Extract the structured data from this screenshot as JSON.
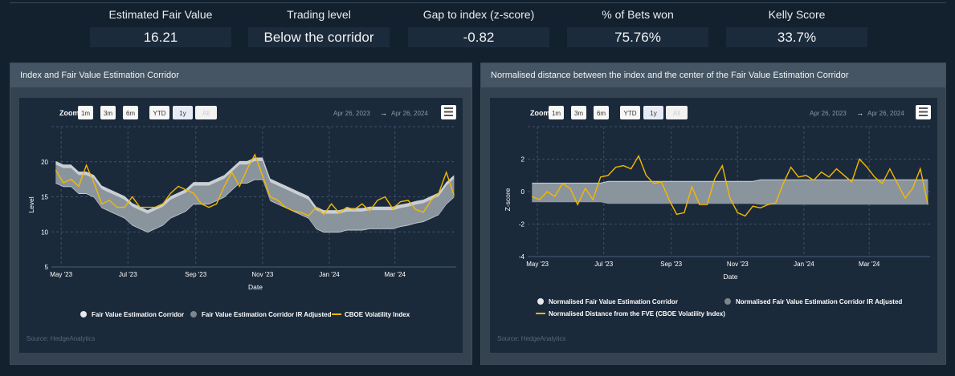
{
  "stats": [
    {
      "label": "Estimated Fair Value",
      "value": "16.21"
    },
    {
      "label": "Trading level",
      "value": "Below the corridor"
    },
    {
      "label": "Gap to index (z-score)",
      "value": "-0.82"
    },
    {
      "label": "% of Bets won",
      "value": "75.76%"
    },
    {
      "label": "Kelly Score",
      "value": "33.7%"
    }
  ],
  "colors": {
    "index_line": "#f5b800",
    "corridor": "#d4d8dc",
    "corridor_ir": "#8a949d",
    "background": "#13202d",
    "chart_bg": "#1b2a3b",
    "panel_header": "#465563"
  },
  "zoom": {
    "label": "Zoom",
    "buttons": [
      "1m",
      "3m",
      "6m",
      "YTD",
      "1y",
      "All"
    ],
    "selected": "1y",
    "disabled": "All"
  },
  "range": {
    "from": "Apr 26, 2023",
    "arrow": "→",
    "to": "Apr 26, 2024"
  },
  "menu_icon": "hamburger-icon",
  "chart_data": [
    {
      "type": "area",
      "title": "Index and Fair Value Estimation Corridor",
      "xlabel": "Date",
      "ylabel": "Level",
      "ylim": [
        5,
        25
      ],
      "yticks": [
        5,
        10,
        15,
        20
      ],
      "xticks": [
        "May '23",
        "Jul '23",
        "Sep '23",
        "Nov '23",
        "Jan '24",
        "Mar '24"
      ],
      "xtick_dates": [
        "2023-05-01",
        "2023-07-01",
        "2023-09-01",
        "2023-11-01",
        "2024-01-01",
        "2024-03-01"
      ],
      "xlim": [
        "2023-04-25",
        "2024-04-26"
      ],
      "grid": true,
      "legend": "bottom",
      "source": "Source: HedgeAnalytics",
      "x": [
        "2023-04-26",
        "2023-05-03",
        "2023-05-10",
        "2023-05-17",
        "2023-05-24",
        "2023-05-31",
        "2023-06-07",
        "2023-06-14",
        "2023-06-21",
        "2023-06-28",
        "2023-07-05",
        "2023-07-12",
        "2023-07-19",
        "2023-07-26",
        "2023-08-02",
        "2023-08-09",
        "2023-08-16",
        "2023-08-23",
        "2023-08-30",
        "2023-09-06",
        "2023-09-13",
        "2023-09-20",
        "2023-09-27",
        "2023-10-04",
        "2023-10-11",
        "2023-10-18",
        "2023-10-25",
        "2023-11-01",
        "2023-11-08",
        "2023-11-15",
        "2023-11-22",
        "2023-11-29",
        "2023-12-06",
        "2023-12-13",
        "2023-12-20",
        "2023-12-27",
        "2024-01-03",
        "2024-01-10",
        "2024-01-17",
        "2024-01-24",
        "2024-01-31",
        "2024-02-07",
        "2024-02-14",
        "2024-02-21",
        "2024-02-28",
        "2024-03-06",
        "2024-03-13",
        "2024-03-20",
        "2024-03-27",
        "2024-04-03",
        "2024-04-10",
        "2024-04-17",
        "2024-04-24"
      ],
      "series": [
        {
          "name": "Fair Value Estimation Corridor",
          "kind": "band",
          "low": [
            16.9,
            16.4,
            16.4,
            15.4,
            15.4,
            14.9,
            13.4,
            12.9,
            12.4,
            11.9,
            10.9,
            10.4,
            9.9,
            10.4,
            10.9,
            11.9,
            12.4,
            12.9,
            13.9,
            13.9,
            13.9,
            14.4,
            14.9,
            15.9,
            16.9,
            16.9,
            17.4,
            17.4,
            14.4,
            13.9,
            13.4,
            12.9,
            12.4,
            11.9,
            10.4,
            9.9,
            9.9,
            9.9,
            10.2,
            10.2,
            10.2,
            10.4,
            10.4,
            10.4,
            10.4,
            10.7,
            10.9,
            11.2,
            11.4,
            11.9,
            12.4,
            13.9,
            14.9
          ],
          "high": [
            20.1,
            19.6,
            19.6,
            18.6,
            18.6,
            18.1,
            16.6,
            16.1,
            15.6,
            15.1,
            14.1,
            13.6,
            13.1,
            13.6,
            14.1,
            15.1,
            15.6,
            16.1,
            17.1,
            17.1,
            17.1,
            17.6,
            18.1,
            19.1,
            20.1,
            20.1,
            20.6,
            20.6,
            17.6,
            17.1,
            16.6,
            16.1,
            15.6,
            15.1,
            13.6,
            13.1,
            13.1,
            13.1,
            13.4,
            13.4,
            13.4,
            13.6,
            13.6,
            13.6,
            13.6,
            13.9,
            14.1,
            14.4,
            14.6,
            15.1,
            15.6,
            17.1,
            18.1
          ]
        },
        {
          "name": "Fair Value Estimation Corridor IR Adjusted",
          "kind": "band",
          "low": [
            17,
            16.5,
            16.5,
            15.5,
            15.5,
            15,
            13.5,
            13,
            12.5,
            12,
            11,
            10.5,
            10,
            10.5,
            11,
            12,
            12.5,
            13,
            14,
            14,
            14,
            14.5,
            15,
            16,
            17,
            17,
            17.5,
            17.5,
            14.5,
            14,
            13.5,
            13,
            12.5,
            12,
            10.5,
            10,
            10,
            10,
            10.3,
            10.3,
            10.3,
            10.5,
            10.5,
            10.5,
            10.5,
            10.8,
            11,
            11.3,
            11.5,
            12,
            12.5,
            14,
            15
          ],
          "high": [
            19.6,
            19.1,
            19.1,
            18.1,
            18.1,
            17.6,
            16.1,
            15.6,
            15.1,
            14.6,
            13.6,
            13.1,
            12.6,
            13.1,
            13.6,
            14.6,
            15.1,
            15.6,
            16.6,
            16.6,
            16.6,
            17.1,
            17.6,
            18.6,
            19.6,
            19.6,
            20.1,
            20.1,
            17.1,
            16.6,
            16.1,
            15.6,
            15.1,
            14.6,
            13.1,
            12.6,
            12.6,
            12.6,
            12.9,
            12.9,
            12.9,
            13.1,
            13.1,
            13.1,
            13.1,
            13.4,
            13.6,
            13.9,
            14.1,
            14.6,
            15.1,
            16.6,
            17.6
          ]
        },
        {
          "name": "CBOE Volatility Index",
          "kind": "line",
          "values": [
            18.8,
            17,
            17.5,
            16.5,
            19.5,
            17,
            14,
            14.5,
            13.5,
            13.5,
            15,
            13.5,
            13.5,
            13.5,
            14,
            15.5,
            16.5,
            16,
            15.5,
            14,
            13.5,
            14,
            16.5,
            18.5,
            16.5,
            19,
            21,
            18,
            15,
            14.5,
            13.5,
            13,
            12.8,
            12.3,
            13.5,
            12.5,
            14,
            12.7,
            13.5,
            13.2,
            14,
            13,
            14.5,
            15,
            13.3,
            14.3,
            14.5,
            13.2,
            12.8,
            14.5,
            15.5,
            18.5,
            15.2
          ]
        }
      ]
    },
    {
      "type": "area",
      "title": "Normalised distance between the index and the center of the Fair Value Estimation Corridor",
      "xlabel": "Date",
      "ylabel": "Z-score",
      "ylim": [
        -4,
        4
      ],
      "yticks": [
        -4,
        -2,
        0,
        2
      ],
      "xticks": [
        "May '23",
        "Jul '23",
        "Sep '23",
        "Nov '23",
        "Jan '24",
        "Mar '24"
      ],
      "xtick_dates": [
        "2023-05-01",
        "2023-07-01",
        "2023-09-01",
        "2023-11-01",
        "2024-01-01",
        "2024-03-01"
      ],
      "xlim": [
        "2023-04-25",
        "2024-04-26"
      ],
      "grid": true,
      "legend": "bottom",
      "source": "Source: HedgeAnalytics",
      "series": [
        {
          "name": "Normalised Fair Value Estimation Corridor",
          "kind": "band",
          "low": [
            -0.55,
            -0.55,
            -0.55,
            -0.55,
            -0.55,
            -0.55,
            -0.55,
            -0.55,
            -0.55,
            -0.55,
            -0.65,
            -0.65,
            -0.65,
            -0.65,
            -0.65,
            -0.65,
            -0.65,
            -0.65,
            -0.65,
            -0.65,
            -0.65,
            -0.65,
            -0.65,
            -0.65,
            -0.65,
            -0.65,
            -0.65,
            -0.65,
            -0.65,
            -0.65,
            -0.75,
            -0.75,
            -0.75,
            -0.75,
            -0.75,
            -0.75,
            -0.75,
            -0.75,
            -0.75,
            -0.75,
            -0.75,
            -0.75,
            -0.75,
            -0.75,
            -0.75,
            -0.75,
            -0.75,
            -0.75,
            -0.75,
            -0.75,
            -0.75,
            -0.75,
            -0.75
          ],
          "high": [
            0.55,
            0.55,
            0.55,
            0.55,
            0.55,
            0.55,
            0.55,
            0.55,
            0.55,
            0.55,
            0.65,
            0.65,
            0.65,
            0.65,
            0.65,
            0.65,
            0.65,
            0.65,
            0.65,
            0.65,
            0.65,
            0.65,
            0.65,
            0.65,
            0.65,
            0.65,
            0.65,
            0.65,
            0.65,
            0.65,
            0.75,
            0.75,
            0.75,
            0.75,
            0.75,
            0.75,
            0.75,
            0.75,
            0.75,
            0.75,
            0.75,
            0.75,
            0.75,
            0.75,
            0.75,
            0.75,
            0.75,
            0.75,
            0.75,
            0.75,
            0.75,
            0.75,
            0.75
          ]
        },
        {
          "name": "Normalised Fair Value Estimation Corridor IR Adjusted",
          "kind": "band",
          "low": [
            -0.65,
            -0.65,
            -0.65,
            -0.65,
            -0.65,
            -0.65,
            -0.65,
            -0.65,
            -0.65,
            -0.65,
            -0.75,
            -0.75,
            -0.75,
            -0.75,
            -0.75,
            -0.75,
            -0.75,
            -0.75,
            -0.75,
            -0.75,
            -0.75,
            -0.75,
            -0.75,
            -0.75,
            -0.75,
            -0.75,
            -0.75,
            -0.75,
            -0.75,
            -0.75,
            -0.8,
            -0.8,
            -0.8,
            -0.8,
            -0.8,
            -0.8,
            -0.8,
            -0.8,
            -0.8,
            -0.8,
            -0.8,
            -0.8,
            -0.8,
            -0.8,
            -0.8,
            -0.8,
            -0.8,
            -0.8,
            -0.8,
            -0.8,
            -0.8,
            -0.8,
            -0.8
          ],
          "high": [
            0.5,
            0.5,
            0.5,
            0.5,
            0.5,
            0.5,
            0.5,
            0.5,
            0.5,
            0.5,
            0.6,
            0.6,
            0.6,
            0.6,
            0.6,
            0.6,
            0.6,
            0.6,
            0.6,
            0.6,
            0.6,
            0.6,
            0.6,
            0.6,
            0.6,
            0.6,
            0.6,
            0.6,
            0.6,
            0.6,
            0.7,
            0.7,
            0.7,
            0.7,
            0.7,
            0.7,
            0.7,
            0.7,
            0.7,
            0.7,
            0.7,
            0.7,
            0.7,
            0.7,
            0.7,
            0.7,
            0.7,
            0.7,
            0.7,
            0.7,
            0.7,
            0.7,
            0.7
          ]
        },
        {
          "name": "Normalised Distance from the FVE (CBOE Volatility Index)",
          "kind": "line",
          "values": [
            -0.3,
            -0.5,
            0,
            -0.3,
            0.5,
            0.2,
            -0.8,
            0.2,
            -0.5,
            0.9,
            1.0,
            1.5,
            1.6,
            1.4,
            2.2,
            1.0,
            0.5,
            0.6,
            -0.5,
            -1.4,
            -1.3,
            0.3,
            -0.8,
            -0.8,
            0.8,
            1.6,
            -0.4,
            -1.3,
            -1.5,
            -0.9,
            -1.0,
            -0.8,
            -0.7,
            0.5,
            1.5,
            0.9,
            1.0,
            0.7,
            1.2,
            0.9,
            1.4,
            1.0,
            0.6,
            2.0,
            1.5,
            0.9,
            0.5,
            1.4,
            0.5,
            -0.4,
            0.2,
            1.4,
            -0.8
          ]
        }
      ]
    }
  ]
}
